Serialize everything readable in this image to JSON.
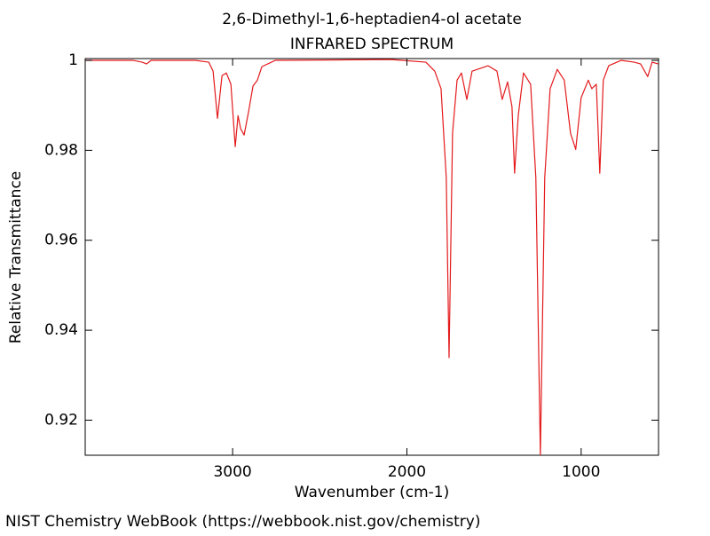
{
  "chart_data": {
    "type": "line",
    "title": "2,6-Dimethyl-1,6-heptadien4-ol acetate",
    "subtitle": "INFRARED SPECTRUM",
    "x_label": "Wavenumber (cm-1)",
    "y_label": "Relative Transmittance",
    "footer": "NIST Chemistry WebBook (https://webbook.nist.gov/chemistry)",
    "xlim": [
      3846,
      556
    ],
    "ylim": [
      0.9122,
      1.0004
    ],
    "xticks": [
      3000,
      2000,
      1000
    ],
    "yticks": [
      {
        "value": 1.0,
        "label": "1"
      },
      0.98,
      0.96,
      0.94,
      0.92
    ],
    "series": [
      {
        "color": "#e31a1c",
        "x": [
          3845,
          3570,
          3519,
          3494,
          3468,
          3214,
          3137,
          3112,
          3087,
          3061,
          3036,
          3010,
          2985,
          2969,
          2954,
          2934,
          2908,
          2883,
          2858,
          2832,
          2756,
          2094,
          1891,
          1840,
          1804,
          1774,
          1758,
          1738,
          1712,
          1687,
          1656,
          1626,
          1534,
          1483,
          1453,
          1422,
          1397,
          1382,
          1361,
          1331,
          1290,
          1260,
          1234,
          1209,
          1178,
          1137,
          1097,
          1061,
          1031,
          1000,
          959,
          939,
          913,
          893,
          873,
          842,
          771,
          695,
          659,
          618,
          593,
          557
        ],
        "values": [
          1.0,
          1.0,
          0.9996,
          0.9992,
          1.0,
          1.0,
          0.9996,
          0.9976,
          0.9871,
          0.9966,
          0.9972,
          0.9947,
          0.9808,
          0.9877,
          0.9848,
          0.9834,
          0.9887,
          0.9943,
          0.9956,
          0.9986,
          1.0,
          1.0002,
          0.9996,
          0.9976,
          0.9937,
          0.9739,
          0.9339,
          0.9838,
          0.9956,
          0.9972,
          0.9913,
          0.9976,
          0.9988,
          0.9976,
          0.9913,
          0.9952,
          0.9897,
          0.9749,
          0.9877,
          0.9972,
          0.9947,
          0.9739,
          0.9122,
          0.9739,
          0.9937,
          0.998,
          0.9956,
          0.9838,
          0.9802,
          0.9917,
          0.9956,
          0.9937,
          0.9947,
          0.9749,
          0.9956,
          0.9988,
          1.0,
          0.9996,
          0.9992,
          0.9964,
          0.9996,
          0.9992
        ]
      }
    ]
  }
}
